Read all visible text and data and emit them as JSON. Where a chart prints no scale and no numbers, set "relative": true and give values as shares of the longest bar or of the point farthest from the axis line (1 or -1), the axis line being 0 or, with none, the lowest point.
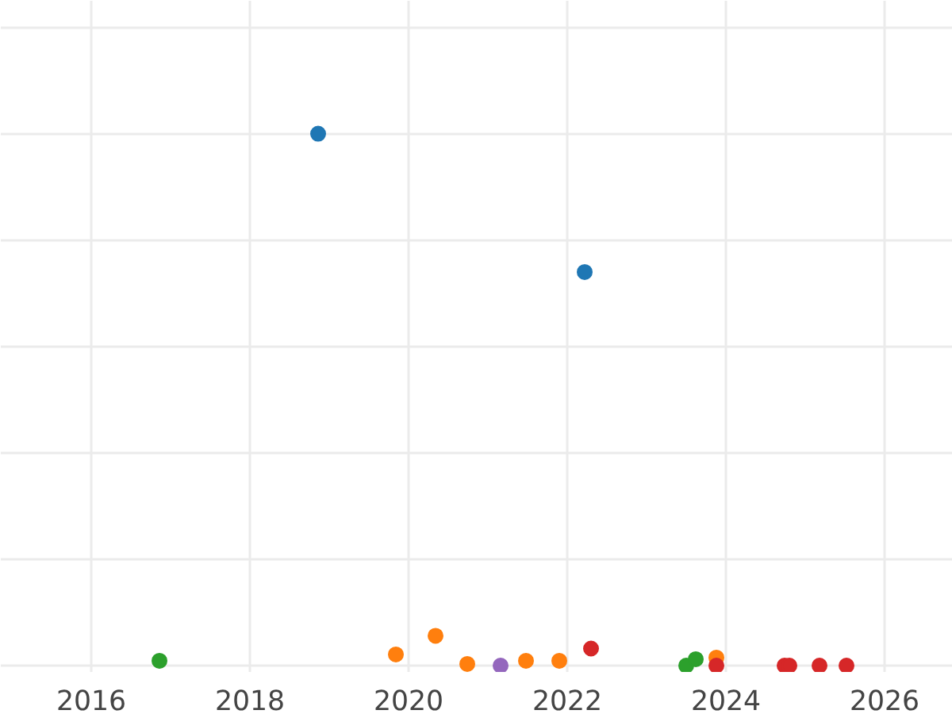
{
  "chart_data": {
    "type": "scatter",
    "relative": true,
    "grid": true,
    "marker": "circle",
    "tick_labels": "x",
    "xlim": [
      2014.86,
      2026.86
    ],
    "xticks": [
      2016,
      2018,
      2020,
      2022,
      2024,
      2026
    ],
    "series": [
      {
        "color": "#1f77b4",
        "x": [
          2018.86,
          2022.22
        ],
        "values": [
          1.0,
          0.74
        ]
      },
      {
        "color": "#2ca02c",
        "x": [
          2016.86,
          2023.5,
          2023.62
        ],
        "values": [
          0.009,
          0.0,
          0.012
        ]
      },
      {
        "color": "#ff7f0e",
        "x": [
          2019.84,
          2020.34,
          2020.74,
          2021.48,
          2021.9,
          2023.88
        ],
        "values": [
          0.021,
          0.056,
          0.003,
          0.009,
          0.009,
          0.015
        ]
      },
      {
        "color": "#9467bd",
        "x": [
          2021.16
        ],
        "values": [
          0.0
        ]
      },
      {
        "color": "#d62728",
        "x": [
          2022.3,
          2023.88,
          2024.74,
          2024.8,
          2025.18,
          2025.52
        ],
        "values": [
          0.032,
          0.0,
          0.0,
          0.0,
          0.0,
          0.0
        ]
      }
    ]
  }
}
